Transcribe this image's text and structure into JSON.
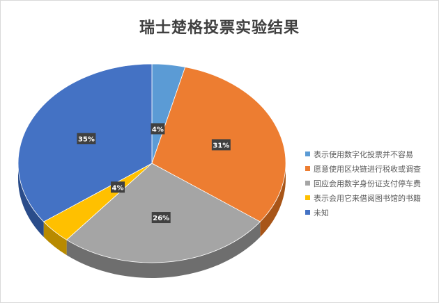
{
  "chart_data": {
    "type": "pie",
    "title": "瑞士楚格投票实验结果",
    "slices": [
      {
        "name": "表示使用数字化投票并不容易",
        "value": 4,
        "label": "4%",
        "color": "#5B9BD5",
        "side": "#3A6E9E"
      },
      {
        "name": "愿意使用区块链进行税收或调查",
        "value": 31,
        "label": "31%",
        "color": "#ED7D31",
        "side": "#A85518"
      },
      {
        "name": "回应会用数字身份证支付停车费",
        "value": 26,
        "label": "26%",
        "color": "#A5A5A5",
        "side": "#6E6E6E"
      },
      {
        "name": "表示会用它来借阅图书馆的书籍",
        "value": 4,
        "label": "4%",
        "color": "#FFC000",
        "side": "#B88A00"
      },
      {
        "name": "未知",
        "value": 35,
        "label": "35%",
        "color": "#4472C4",
        "side": "#2A4C8A"
      }
    ],
    "legend_position": "right"
  }
}
